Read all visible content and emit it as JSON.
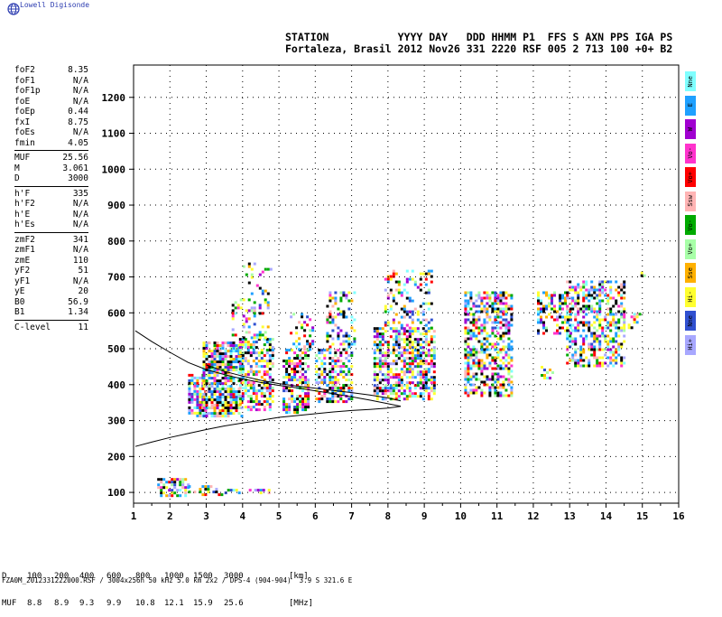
{
  "brand": "Lowell Digisonde",
  "header": {
    "labels": "STATION           YYYY DAY   DDD HHMM P1  FFS S AXN PPS IGA PS",
    "values": "Fortaleza, Brasil 2012 Nov26 331 2220 RSF 005 2 713 100 +0+ B2"
  },
  "params": {
    "groups": [
      [
        {
          "name": "foF2",
          "value": "8.35"
        },
        {
          "name": "foF1",
          "value": "N/A"
        },
        {
          "name": "foF1p",
          "value": "N/A"
        },
        {
          "name": "foE",
          "value": "N/A"
        },
        {
          "name": "foEp",
          "value": "0.44"
        },
        {
          "name": "fxI",
          "value": "8.75"
        },
        {
          "name": "foEs",
          "value": "N/A"
        },
        {
          "name": "fmin",
          "value": "4.05"
        }
      ],
      [
        {
          "name": "MUF",
          "value": "25.56"
        },
        {
          "name": "M",
          "value": "3.061"
        },
        {
          "name": "D",
          "value": "3000"
        }
      ],
      [
        {
          "name": "h'F",
          "value": "335"
        },
        {
          "name": "h'F2",
          "value": "N/A"
        },
        {
          "name": "h'E",
          "value": "N/A"
        },
        {
          "name": "h'Es",
          "value": "N/A"
        }
      ],
      [
        {
          "name": "zmF2",
          "value": "341"
        },
        {
          "name": "zmF1",
          "value": "N/A"
        },
        {
          "name": "zmE",
          "value": "110"
        },
        {
          "name": "yF2",
          "value": "51"
        },
        {
          "name": "yF1",
          "value": "N/A"
        },
        {
          "name": "yE",
          "value": "20"
        },
        {
          "name": "B0",
          "value": "56.9"
        },
        {
          "name": "B1",
          "value": "1.34"
        }
      ],
      [
        {
          "name": "C-level",
          "value": "11"
        }
      ]
    ]
  },
  "legend": [
    {
      "label": "Nne",
      "color": "#7fffff"
    },
    {
      "label": "E",
      "color": "#1ea0ff"
    },
    {
      "label": "W",
      "color": "#a000d0"
    },
    {
      "label": "Vo-",
      "color": "#ff33cc"
    },
    {
      "label": "Vo+",
      "color": "#ff0000"
    },
    {
      "label": "Ssw",
      "color": "#ffb4b4"
    },
    {
      "label": "Vo-",
      "color": "#00aa00"
    },
    {
      "label": "Vo+",
      "color": "#a8ffa8"
    },
    {
      "label": "Sse",
      "color": "#ffb000"
    },
    {
      "label": "Hi-",
      "color": "#ffff30"
    },
    {
      "label": "Nne",
      "color": "#3050d0"
    },
    {
      "label": "Hi+",
      "color": "#a8a8ff"
    }
  ],
  "muf_table": {
    "d_label": "D",
    "d_values": [
      "100",
      "200",
      "400",
      "600",
      "800",
      "1000",
      "1500",
      "3000"
    ],
    "d_unit": "[km]",
    "muf_label": "MUF",
    "muf_values": [
      "8.8",
      "8.9",
      "9.3",
      "9.9",
      "10.8",
      "12.1",
      "15.9",
      "25.6"
    ],
    "muf_unit": "[MHz]"
  },
  "footer": "FZA0M_2012331222000.RSF / 3004x256h 50 kHz 5.0 km 2x2 / DPS-4 (904-904)  3.9 S 321.6 E",
  "chart_data": {
    "type": "scatter",
    "x_ticks": [
      "1",
      "2",
      "3",
      "4",
      "5",
      "6",
      "7",
      "8",
      "9",
      "10",
      "11",
      "12",
      "13",
      "14",
      "15",
      "16"
    ],
    "y_ticks": [
      "100",
      "200",
      "300",
      "400",
      "500",
      "600",
      "700",
      "800",
      "900",
      "1000",
      "1100",
      "1200"
    ],
    "xlim": [
      1,
      16
    ],
    "ylim": [
      70,
      1290
    ],
    "grid": true,
    "echo_regions": [
      {
        "x": [
          1.65,
          2.5
        ],
        "y": [
          90,
          140
        ],
        "density": 0.55
      },
      {
        "x": [
          2.5,
          3.5
        ],
        "y": [
          95,
          120
        ],
        "density": 0.35
      },
      {
        "x": [
          3.5,
          4.7
        ],
        "y": [
          98,
          110
        ],
        "density": 0.25
      },
      {
        "x": [
          2.5,
          3.0
        ],
        "y": [
          310,
          430
        ],
        "density": 0.7
      },
      {
        "x": [
          2.9,
          4.0
        ],
        "y": [
          315,
          520
        ],
        "density": 0.75
      },
      {
        "x": [
          3.9,
          4.8
        ],
        "y": [
          330,
          530
        ],
        "density": 0.6
      },
      {
        "x": [
          3.7,
          4.7
        ],
        "y": [
          530,
          640
        ],
        "density": 0.3
      },
      {
        "x": [
          4.0,
          4.8
        ],
        "y": [
          650,
          740
        ],
        "density": 0.12
      },
      {
        "x": [
          5.1,
          5.8
        ],
        "y": [
          320,
          500
        ],
        "density": 0.6
      },
      {
        "x": [
          5.3,
          5.9
        ],
        "y": [
          500,
          600
        ],
        "density": 0.3
      },
      {
        "x": [
          6.0,
          7.0
        ],
        "y": [
          355,
          500
        ],
        "density": 0.6
      },
      {
        "x": [
          6.3,
          7.1
        ],
        "y": [
          500,
          660
        ],
        "density": 0.35
      },
      {
        "x": [
          7.6,
          9.3
        ],
        "y": [
          360,
          560
        ],
        "density": 0.65
      },
      {
        "x": [
          7.9,
          9.2
        ],
        "y": [
          560,
          720
        ],
        "density": 0.3
      },
      {
        "x": [
          10.1,
          11.4
        ],
        "y": [
          370,
          660
        ],
        "density": 0.55
      },
      {
        "x": [
          12.1,
          13.0
        ],
        "y": [
          540,
          660
        ],
        "density": 0.45
      },
      {
        "x": [
          12.2,
          12.5
        ],
        "y": [
          420,
          460
        ],
        "density": 0.3
      },
      {
        "x": [
          12.9,
          14.5
        ],
        "y": [
          450,
          690
        ],
        "density": 0.55
      },
      {
        "x": [
          14.6,
          14.9
        ],
        "y": [
          560,
          600
        ],
        "density": 0.3
      },
      {
        "x": [
          14.95,
          15.05
        ],
        "y": [
          700,
          760
        ],
        "density": 0.3
      }
    ],
    "profile_upper": [
      [
        1.05,
        550
      ],
      [
        1.5,
        520
      ],
      [
        2.0,
        490
      ],
      [
        2.5,
        462
      ],
      [
        3.0,
        442
      ],
      [
        3.5,
        428
      ],
      [
        4.0,
        416
      ],
      [
        4.5,
        406
      ],
      [
        5.0,
        398
      ],
      [
        5.5,
        391
      ],
      [
        6.0,
        383
      ],
      [
        6.5,
        375
      ],
      [
        7.0,
        366
      ],
      [
        7.5,
        357
      ],
      [
        8.0,
        347
      ],
      [
        8.35,
        340
      ]
    ],
    "profile_lower": [
      [
        1.05,
        228
      ],
      [
        1.5,
        240
      ],
      [
        2.0,
        253
      ],
      [
        2.5,
        264
      ],
      [
        3.0,
        275
      ],
      [
        3.5,
        285
      ],
      [
        4.0,
        293
      ],
      [
        4.5,
        301
      ],
      [
        5.0,
        309
      ],
      [
        5.5,
        314
      ],
      [
        6.0,
        319
      ],
      [
        6.5,
        324
      ],
      [
        7.0,
        328
      ],
      [
        7.5,
        331
      ],
      [
        8.0,
        335
      ],
      [
        8.35,
        340
      ]
    ],
    "profile_trace": [
      [
        3.0,
        455
      ],
      [
        3.5,
        437
      ],
      [
        4.0,
        424
      ],
      [
        4.5,
        412
      ],
      [
        5.0,
        403
      ],
      [
        5.5,
        396
      ],
      [
        6.0,
        390
      ],
      [
        6.5,
        384
      ],
      [
        7.0,
        378
      ],
      [
        7.5,
        371
      ],
      [
        8.0,
        363
      ],
      [
        8.35,
        355
      ]
    ]
  }
}
